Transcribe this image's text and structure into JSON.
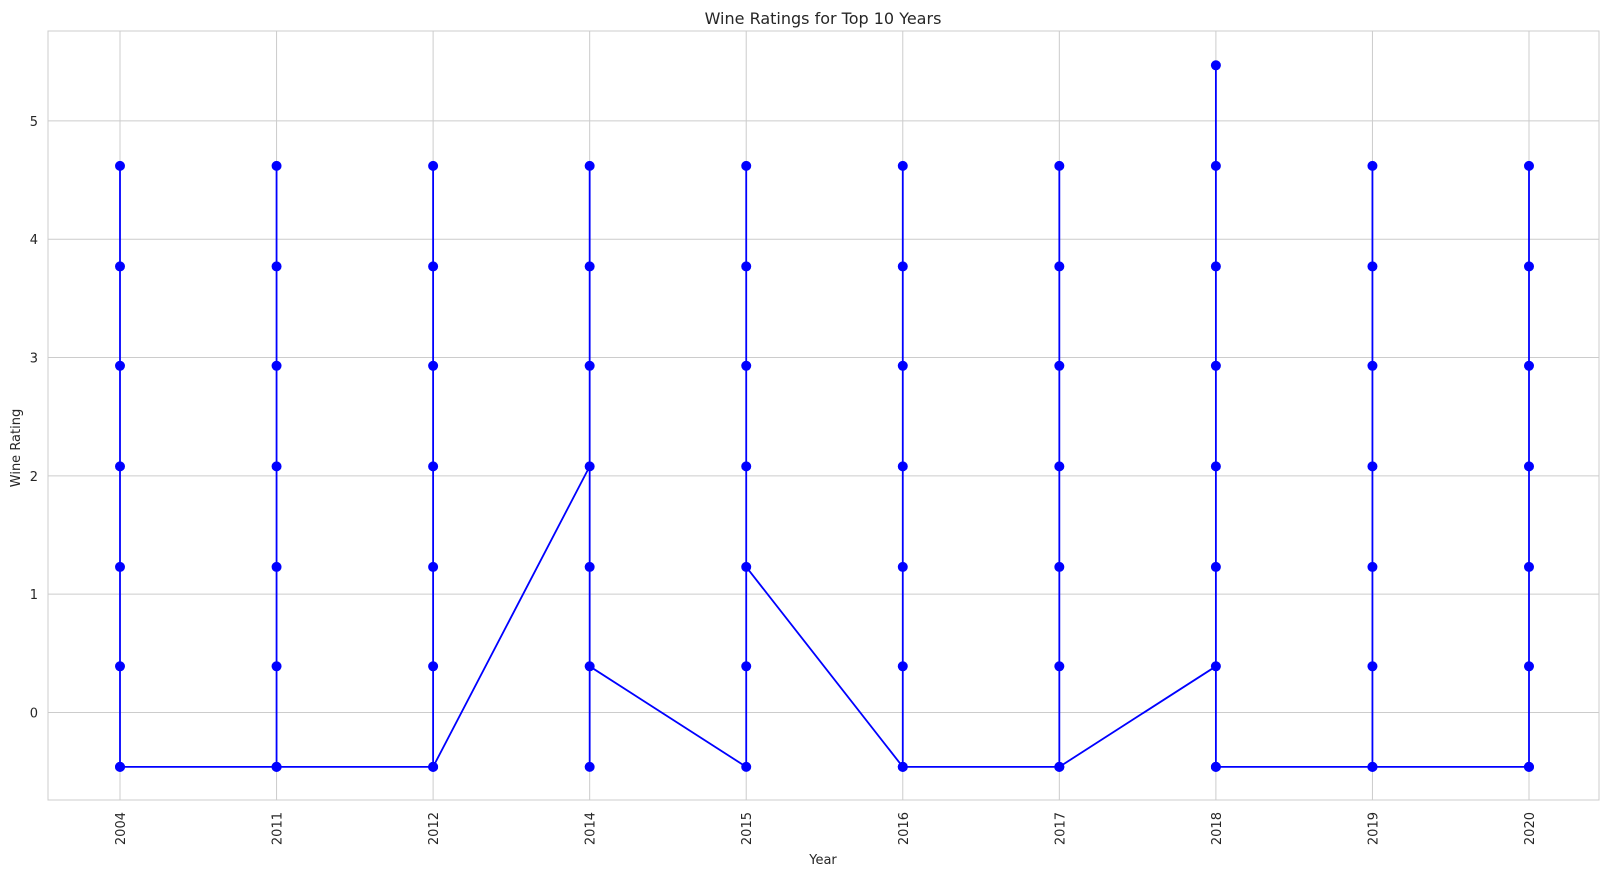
{
  "chart_data": {
    "type": "line",
    "title": "Wine Ratings for Top 10 Years",
    "xlabel": "Year",
    "ylabel": "Wine Rating",
    "categories": [
      "2004",
      "2011",
      "2012",
      "2014",
      "2015",
      "2016",
      "2017",
      "2018",
      "2019",
      "2020"
    ],
    "yticks": [
      0,
      1,
      2,
      3,
      4,
      5
    ],
    "ylim": [
      -0.74,
      5.76
    ],
    "grid": true,
    "line_color": "#0000ff",
    "marker": "circle",
    "series": [
      {
        "points": [
          [
            "2004",
            -0.46
          ],
          [
            "2004",
            4.62
          ],
          [
            "2004",
            0.39
          ],
          [
            "2004",
            3.77
          ],
          [
            "2004",
            1.23
          ],
          [
            "2004",
            2.93
          ],
          [
            "2004",
            2.08
          ],
          [
            "2004",
            -0.46
          ],
          [
            "2011",
            -0.46
          ],
          [
            "2011",
            4.62
          ],
          [
            "2011",
            0.39
          ],
          [
            "2011",
            3.77
          ],
          [
            "2011",
            1.23
          ],
          [
            "2011",
            2.93
          ],
          [
            "2011",
            2.08
          ],
          [
            "2011",
            -0.46
          ],
          [
            "2012",
            -0.46
          ],
          [
            "2012",
            4.62
          ],
          [
            "2012",
            0.39
          ],
          [
            "2012",
            3.77
          ],
          [
            "2012",
            1.23
          ],
          [
            "2012",
            2.93
          ],
          [
            "2012",
            2.08
          ],
          [
            "2012",
            -0.46
          ],
          [
            "2014",
            2.08
          ],
          [
            "2014",
            4.62
          ],
          [
            "2014",
            -0.46
          ],
          [
            "2014",
            3.77
          ],
          [
            "2014",
            1.23
          ],
          [
            "2014",
            2.93
          ],
          [
            "2014",
            0.39
          ],
          [
            "2015",
            -0.46
          ],
          [
            "2015",
            4.62
          ],
          [
            "2015",
            0.39
          ],
          [
            "2015",
            3.77
          ],
          [
            "2015",
            2.93
          ],
          [
            "2015",
            2.08
          ],
          [
            "2015",
            1.23
          ],
          [
            "2016",
            -0.46
          ],
          [
            "2016",
            4.62
          ],
          [
            "2016",
            0.39
          ],
          [
            "2016",
            3.77
          ],
          [
            "2016",
            1.23
          ],
          [
            "2016",
            2.93
          ],
          [
            "2016",
            2.08
          ],
          [
            "2016",
            -0.46
          ],
          [
            "2017",
            -0.46
          ],
          [
            "2017",
            4.62
          ],
          [
            "2017",
            0.39
          ],
          [
            "2017",
            3.77
          ],
          [
            "2017",
            1.23
          ],
          [
            "2017",
            2.93
          ],
          [
            "2017",
            2.08
          ],
          [
            "2017",
            -0.46
          ],
          [
            "2018",
            0.39
          ],
          [
            "2018",
            5.47
          ],
          [
            "2018",
            -0.46
          ],
          [
            "2018",
            4.62
          ],
          [
            "2018",
            1.23
          ],
          [
            "2018",
            3.77
          ],
          [
            "2018",
            2.08
          ],
          [
            "2018",
            2.93
          ],
          [
            "2018",
            -0.46
          ],
          [
            "2019",
            -0.46
          ],
          [
            "2019",
            4.62
          ],
          [
            "2019",
            0.39
          ],
          [
            "2019",
            3.77
          ],
          [
            "2019",
            1.23
          ],
          [
            "2019",
            2.93
          ],
          [
            "2019",
            2.08
          ],
          [
            "2019",
            -0.46
          ],
          [
            "2020",
            -0.46
          ],
          [
            "2020",
            4.62
          ],
          [
            "2020",
            0.39
          ],
          [
            "2020",
            3.77
          ],
          [
            "2020",
            1.23
          ],
          [
            "2020",
            2.93
          ],
          [
            "2020",
            2.08
          ],
          [
            "2020",
            -0.46
          ]
        ]
      }
    ]
  }
}
